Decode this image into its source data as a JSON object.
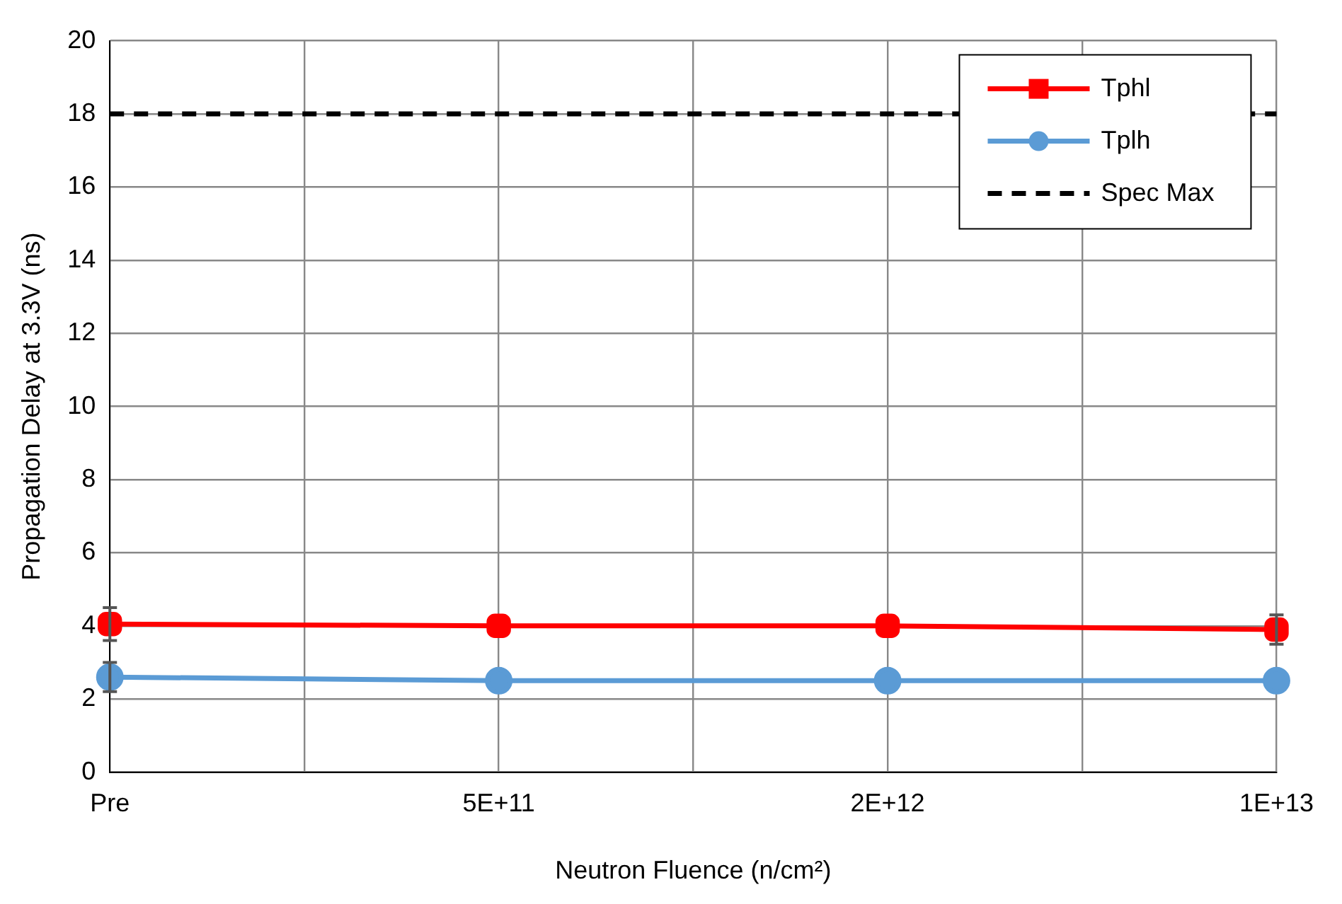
{
  "chart_data": {
    "type": "line",
    "xlabel": "Neutron Fluence (n/cm²)",
    "ylabel": "Propagation Delay at 3.3V (ns)",
    "categories": [
      "Pre",
      null,
      "5E+11",
      null,
      "2E+12",
      null,
      "1E+13"
    ],
    "series": [
      {
        "name": "Tphl",
        "color": "#ff0000",
        "marker": "square",
        "line_style": "solid",
        "values": [
          4.05,
          null,
          4.0,
          null,
          4.0,
          null,
          3.9
        ],
        "errors": [
          0.45,
          null,
          null,
          null,
          null,
          null,
          0.4
        ]
      },
      {
        "name": "Tplh",
        "color": "#5b9bd5",
        "marker": "circle",
        "line_style": "solid",
        "values": [
          2.6,
          null,
          2.5,
          null,
          2.5,
          null,
          2.5
        ],
        "errors": [
          0.4,
          null,
          null,
          null,
          null,
          null,
          null
        ]
      },
      {
        "name": "Spec Max",
        "color": "#000000",
        "marker": "none",
        "line_style": "dashed",
        "values": [
          18,
          null,
          18,
          null,
          18,
          null,
          18
        ]
      }
    ],
    "ylim": [
      0,
      20
    ],
    "yticks": [
      0,
      2,
      4,
      6,
      8,
      10,
      12,
      14,
      16,
      18,
      20
    ],
    "grid": true,
    "legend": "top right"
  }
}
